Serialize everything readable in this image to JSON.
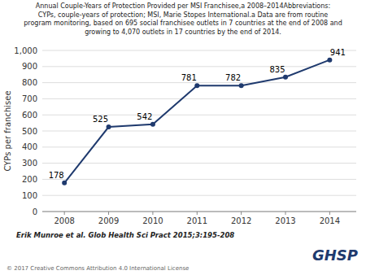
{
  "chart_data": {
    "type": "line",
    "title": [
      "Annual Couple-Years of Protection Provided per MSI Franchisee,a 2008–2014Abbreviations:",
      "CYPs, couple-years of protection; MSI, Marie Stopes International.a Data are from routine",
      "program monitoring, based on 695 social franchisee outlets in 7 countries at the end of 2008 and",
      "growing to 4,070 outlets in 17 countries by the end of 2014."
    ],
    "y_label": "CYPs per franchisee",
    "x": [
      2008,
      2009,
      2010,
      2011,
      2012,
      2013,
      2014
    ],
    "values": [
      178,
      525,
      542,
      781,
      782,
      835,
      941
    ],
    "color": "#1F3A6E",
    "marker": "circle",
    "data_labels": true,
    "grid": true,
    "xlim": [
      2007.5,
      2014.6
    ],
    "xticks": [
      2008,
      2009,
      2010,
      2011,
      2012,
      2013,
      2014
    ],
    "ylim": [
      0,
      1000
    ],
    "yticks": [
      0,
      100,
      200,
      300,
      400,
      500,
      600,
      700,
      800,
      900,
      {
        "value": 1000,
        "label": "1,000"
      }
    ],
    "annotations": [
      "Erik Munroe et al. Glob Health Sci Pract 2015;3:195-208",
      "© 2017 Creative Commons Attribution 4.0 International License",
      "GHSP"
    ]
  }
}
